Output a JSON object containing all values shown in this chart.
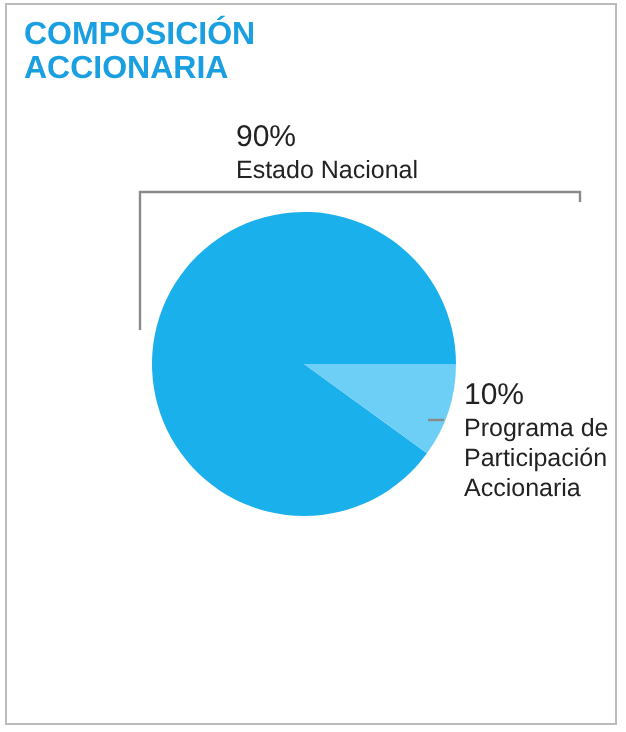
{
  "chart_data": {
    "type": "pie",
    "title": "COMPOSICIÓN ACCIONARIA",
    "categories": [
      "Estado Nacional",
      "Programa de Participación Accionaria"
    ],
    "values": [
      90,
      10
    ],
    "colors": [
      "#1ab0ec",
      "#6dcff6"
    ],
    "value_labels": [
      "90%",
      "10%"
    ]
  }
}
